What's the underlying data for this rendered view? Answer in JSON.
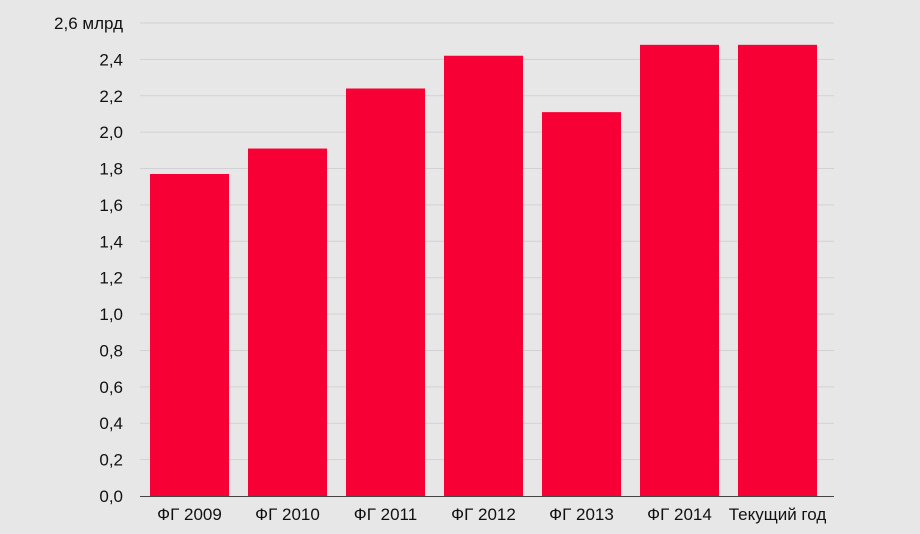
{
  "chart_data": {
    "type": "bar",
    "categories": [
      "ФГ 2009",
      "ФГ 2010",
      "ФГ 2011",
      "ФГ 2012",
      "ФГ 2013",
      "ФГ 2014",
      "Текущий год"
    ],
    "values": [
      1.77,
      1.91,
      2.24,
      2.42,
      2.11,
      2.48,
      2.48
    ],
    "ylim": [
      0,
      2.6
    ],
    "yticks": [
      "0,0",
      "0,2",
      "0,4",
      "0,6",
      "0,8",
      "1,0",
      "1,2",
      "1,4",
      "1,6",
      "1,8",
      "2,0",
      "2,2",
      "2,4",
      "2,6 млрд"
    ],
    "ytick_values": [
      0,
      0.2,
      0.4,
      0.6,
      0.8,
      1.0,
      1.2,
      1.4,
      1.6,
      1.8,
      2.0,
      2.2,
      2.4,
      2.6
    ],
    "title": "",
    "xlabel": "",
    "ylabel": "",
    "grid": true,
    "colors": {
      "bar": "#f70035",
      "grid": "#d2d1d1",
      "axis": "#444444",
      "background": "#e8e7e7"
    }
  }
}
